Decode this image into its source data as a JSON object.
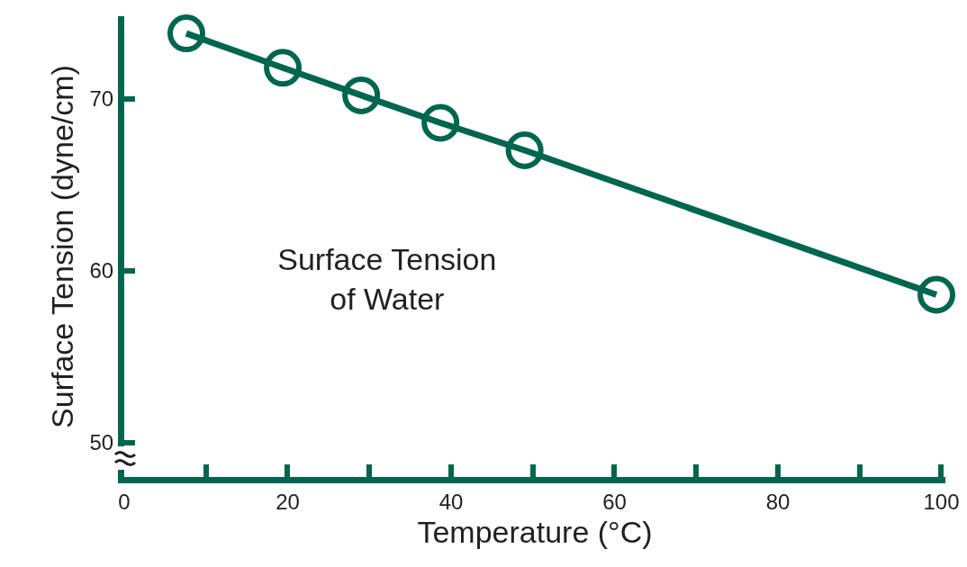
{
  "chart_data": {
    "type": "line",
    "title": "Surface Tension\nof Water",
    "xlabel": "Temperature (°C)",
    "ylabel": "Surface Tension (dyne/cm)",
    "x": [
      7.6,
      19.4,
      29,
      38.7,
      49,
      99.4
    ],
    "series": [
      {
        "color": "#00664f",
        "values": [
          73.8,
          71.8,
          70.2,
          68.6,
          67,
          58.6
        ]
      }
    ],
    "xlim": [
      0,
      100.5
    ],
    "xticks": [
      0,
      {
        "value": 10,
        "label": null
      },
      20,
      {
        "value": 30,
        "label": null
      },
      40,
      {
        "value": 50,
        "label": null
      },
      60,
      {
        "value": 70,
        "label": null
      },
      80,
      {
        "value": 90,
        "label": null
      },
      100
    ],
    "ylim": [
      48,
      74.8
    ],
    "yticks": [
      50,
      60,
      70
    ],
    "grid": false,
    "marker": "circle",
    "line_style": "solid"
  }
}
